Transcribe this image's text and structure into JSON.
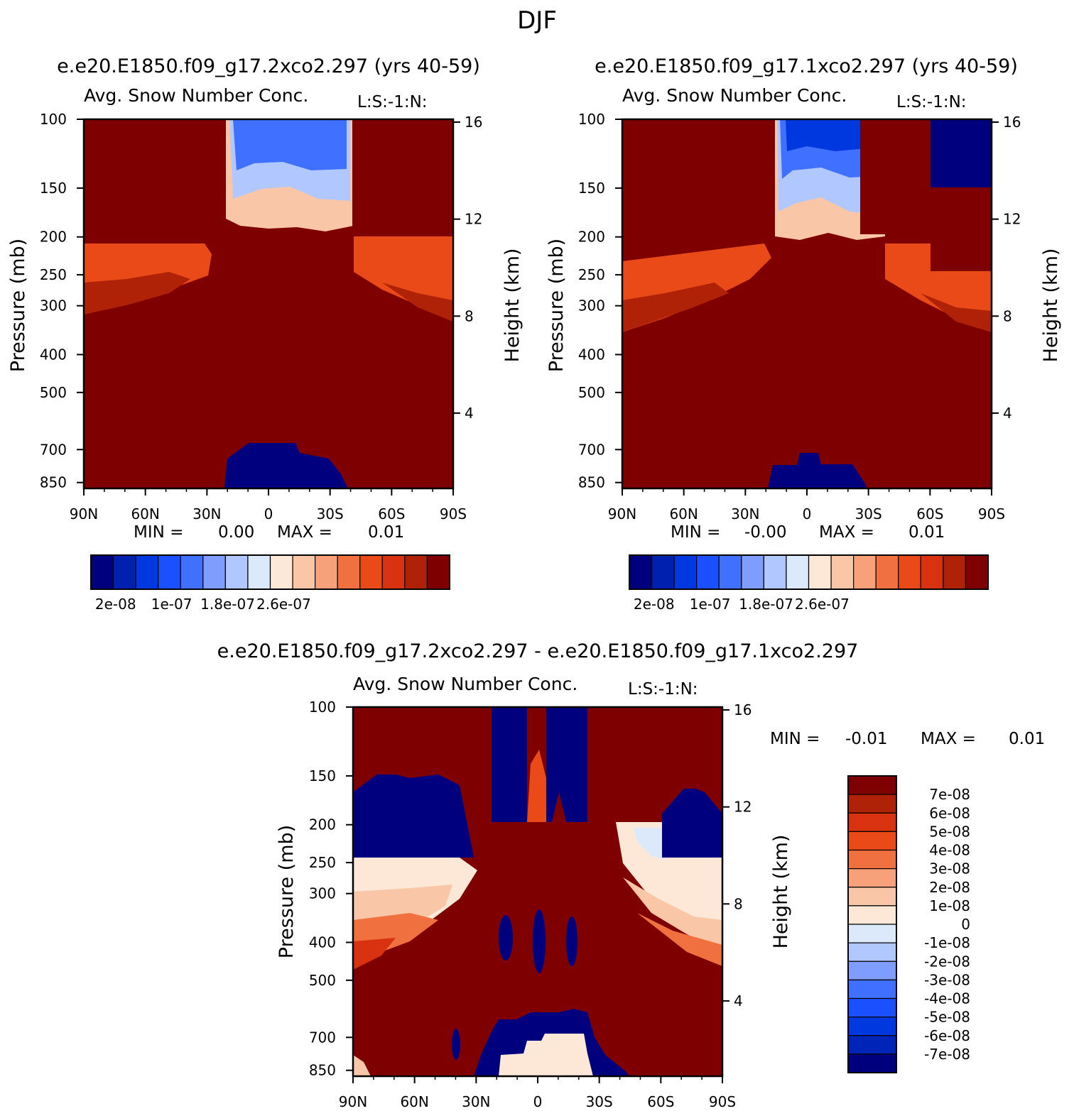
{
  "figure": {
    "title": "DJF"
  },
  "colors": {
    "top_cmap": [
      "#00007f",
      "#0020b0",
      "#0038e0",
      "#1a50ff",
      "#4070ff",
      "#7f9cff",
      "#b0c8ff",
      "#dbe9fb",
      "#fde8d8",
      "#f9c6a8",
      "#f7a07a",
      "#f07040",
      "#ea4a17",
      "#d83210",
      "#b02208",
      "#7f0000"
    ],
    "diff_cmap": [
      "#00007f",
      "#0024b8",
      "#0038e0",
      "#1a50ff",
      "#4070ff",
      "#7f9cff",
      "#b0c8ff",
      "#dbe9fb",
      "#fde8d8",
      "#f9c6a8",
      "#f7a07a",
      "#f07040",
      "#ea4a17",
      "#d83210",
      "#b02208",
      "#7f0000"
    ]
  },
  "chart_data": [
    {
      "type": "heatmap",
      "id": "panel_a",
      "case_title": "e.e20.E1850.f09_g17.2xco2.297 (yrs 40-59)",
      "variable": "Avg. Snow Number Conc.",
      "level_tag": "L:S:-1:N:",
      "ylabel": "Pressure (mb)",
      "ylabel_right": "Height (km)",
      "pressure_ticks": [
        "100",
        "150",
        "200",
        "250",
        "300",
        "400",
        "500",
        "700",
        "850"
      ],
      "height_ticks": [
        "16",
        "12",
        "8",
        "4"
      ],
      "lat_ticks": [
        "90N",
        "60N",
        "30N",
        "0",
        "30S",
        "60S",
        "90S"
      ],
      "min_label": "MIN =",
      "min_value": "0.00",
      "max_label": "MAX =",
      "max_value": "0.01",
      "colorbar_labels": [
        "2e-08",
        "1e-07",
        "1.8e-07",
        "2.6e-07"
      ]
    },
    {
      "type": "heatmap",
      "id": "panel_b",
      "case_title": "e.e20.E1850.f09_g17.1xco2.297 (yrs 40-59)",
      "variable": "Avg. Snow Number Conc.",
      "level_tag": "L:S:-1:N:",
      "ylabel": "Pressure (mb)",
      "ylabel_right": "Height (km)",
      "pressure_ticks": [
        "100",
        "150",
        "200",
        "250",
        "300",
        "400",
        "500",
        "700",
        "850"
      ],
      "height_ticks": [
        "16",
        "12",
        "8",
        "4"
      ],
      "lat_ticks": [
        "90N",
        "60N",
        "30N",
        "0",
        "30S",
        "60S",
        "90S"
      ],
      "min_label": "MIN =",
      "min_value": "-0.00",
      "max_label": "MAX =",
      "max_value": "0.01",
      "colorbar_labels": [
        "2e-08",
        "1e-07",
        "1.8e-07",
        "2.6e-07"
      ]
    },
    {
      "type": "heatmap",
      "id": "panel_diff",
      "case_title": "e.e20.E1850.f09_g17.2xco2.297 - e.e20.E1850.f09_g17.1xco2.297",
      "variable": "Avg. Snow Number Conc.",
      "level_tag": "L:S:-1:N:",
      "ylabel": "Pressure (mb)",
      "ylabel_right": "Height (km)",
      "pressure_ticks": [
        "100",
        "150",
        "200",
        "250",
        "300",
        "400",
        "500",
        "700",
        "850"
      ],
      "height_ticks": [
        "16",
        "12",
        "8",
        "4"
      ],
      "lat_ticks": [
        "90N",
        "60N",
        "30N",
        "0",
        "30S",
        "60S",
        "90S"
      ],
      "min_label": "MIN =",
      "min_value": "-0.01",
      "max_label": "MAX =",
      "max_value": "0.01",
      "colorbar_labels": [
        "7e-08",
        "6e-08",
        "5e-08",
        "4e-08",
        "3e-08",
        "2e-08",
        "1e-08",
        "0",
        "-1e-08",
        "-2e-08",
        "-3e-08",
        "-4e-08",
        "-5e-08",
        "-6e-08",
        "-7e-08"
      ]
    }
  ]
}
